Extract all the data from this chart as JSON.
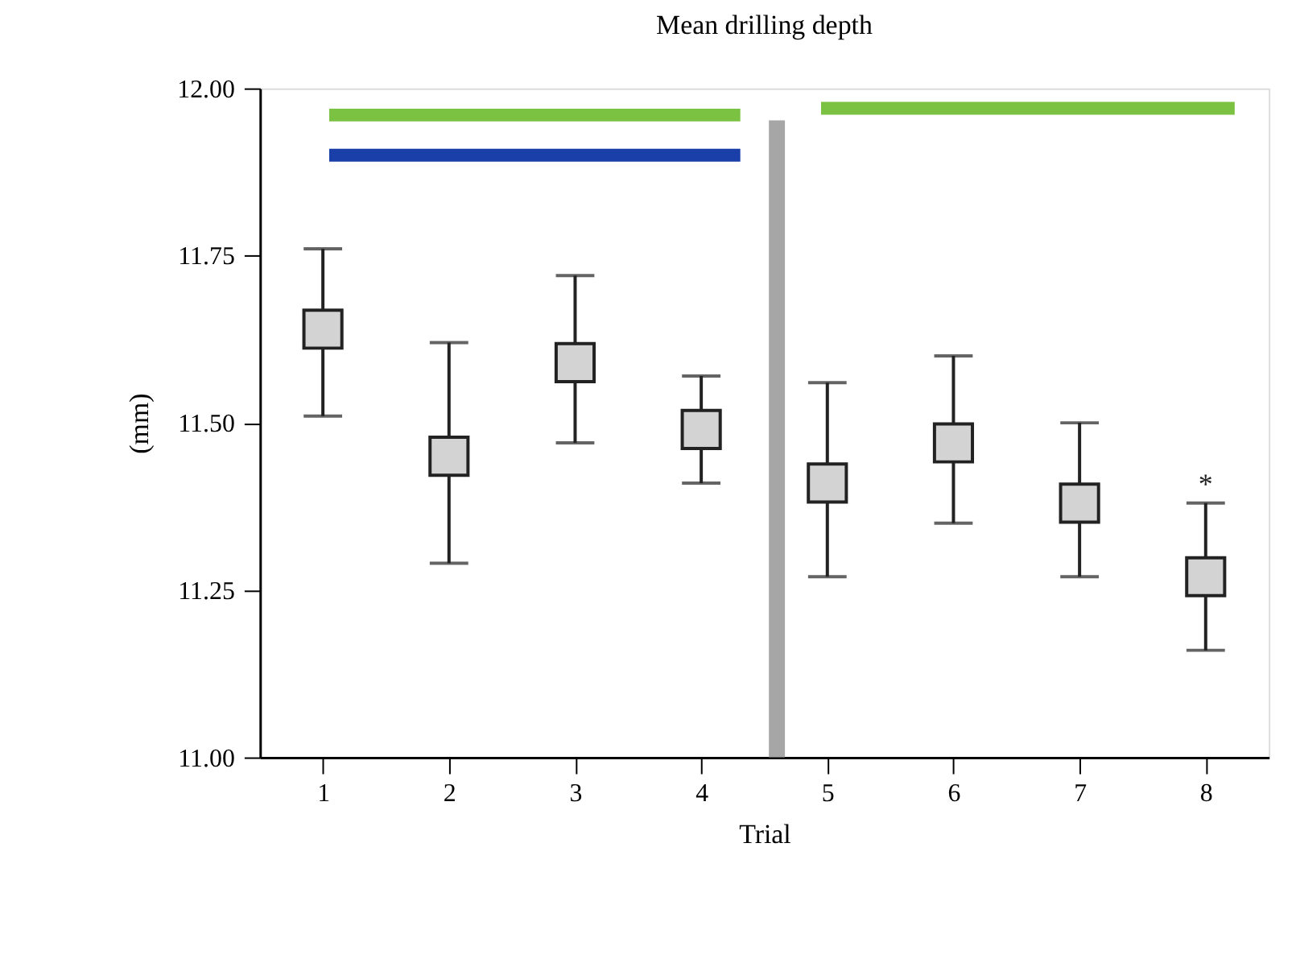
{
  "chart_data": {
    "type": "scatter",
    "title": "Mean drilling depth",
    "xlabel": "Trial",
    "ylabel": "(mm)",
    "x": [
      1,
      2,
      3,
      4,
      5,
      6,
      7,
      8
    ],
    "series": [
      {
        "color": "#d3d3d3",
        "marker": "square",
        "values": [
          11.64,
          11.45,
          11.59,
          11.49,
          11.41,
          11.47,
          11.38,
          11.27
        ],
        "errors": [
          [
            11.51,
            11.76
          ],
          [
            11.29,
            11.62
          ],
          [
            11.47,
            11.72
          ],
          [
            11.41,
            11.57
          ],
          [
            11.27,
            11.56
          ],
          [
            11.35,
            11.6
          ],
          [
            11.27,
            11.5
          ],
          [
            11.16,
            11.38
          ]
        ]
      },
      {
        "type": "line",
        "color": "#7cc242",
        "x": [
          1.05,
          4.31
        ],
        "values": [
          11.96,
          11.96
        ]
      },
      {
        "type": "line",
        "color": "#1a3fa8",
        "x": [
          1.05,
          4.31
        ],
        "values": [
          11.9,
          11.9
        ]
      },
      {
        "type": "line",
        "color": "#7cc242",
        "x": [
          4.95,
          8.23
        ],
        "values": [
          11.97,
          11.97
        ]
      }
    ],
    "marker": "none",
    "xlim": [
      0.5,
      8.5
    ],
    "xticks": [
      1,
      2,
      3,
      4,
      5,
      6,
      7,
      8
    ],
    "ylim": [
      11.0,
      12.0
    ],
    "yticks": [
      {
        "value": 11.0,
        "label": "11.00"
      },
      {
        "value": 11.25,
        "label": "11.25"
      },
      {
        "value": 11.5,
        "label": "11.50"
      },
      {
        "value": 11.75,
        "label": "11.75"
      },
      {
        "value": 12.0,
        "label": "12.00"
      }
    ],
    "ref_lines": [
      {
        "axis": "x",
        "value": 4.6,
        "color": "#a6a6a6"
      }
    ],
    "annotations": [
      {
        "text": "*",
        "x": 8,
        "y": 11.38
      }
    ],
    "grid": false
  }
}
